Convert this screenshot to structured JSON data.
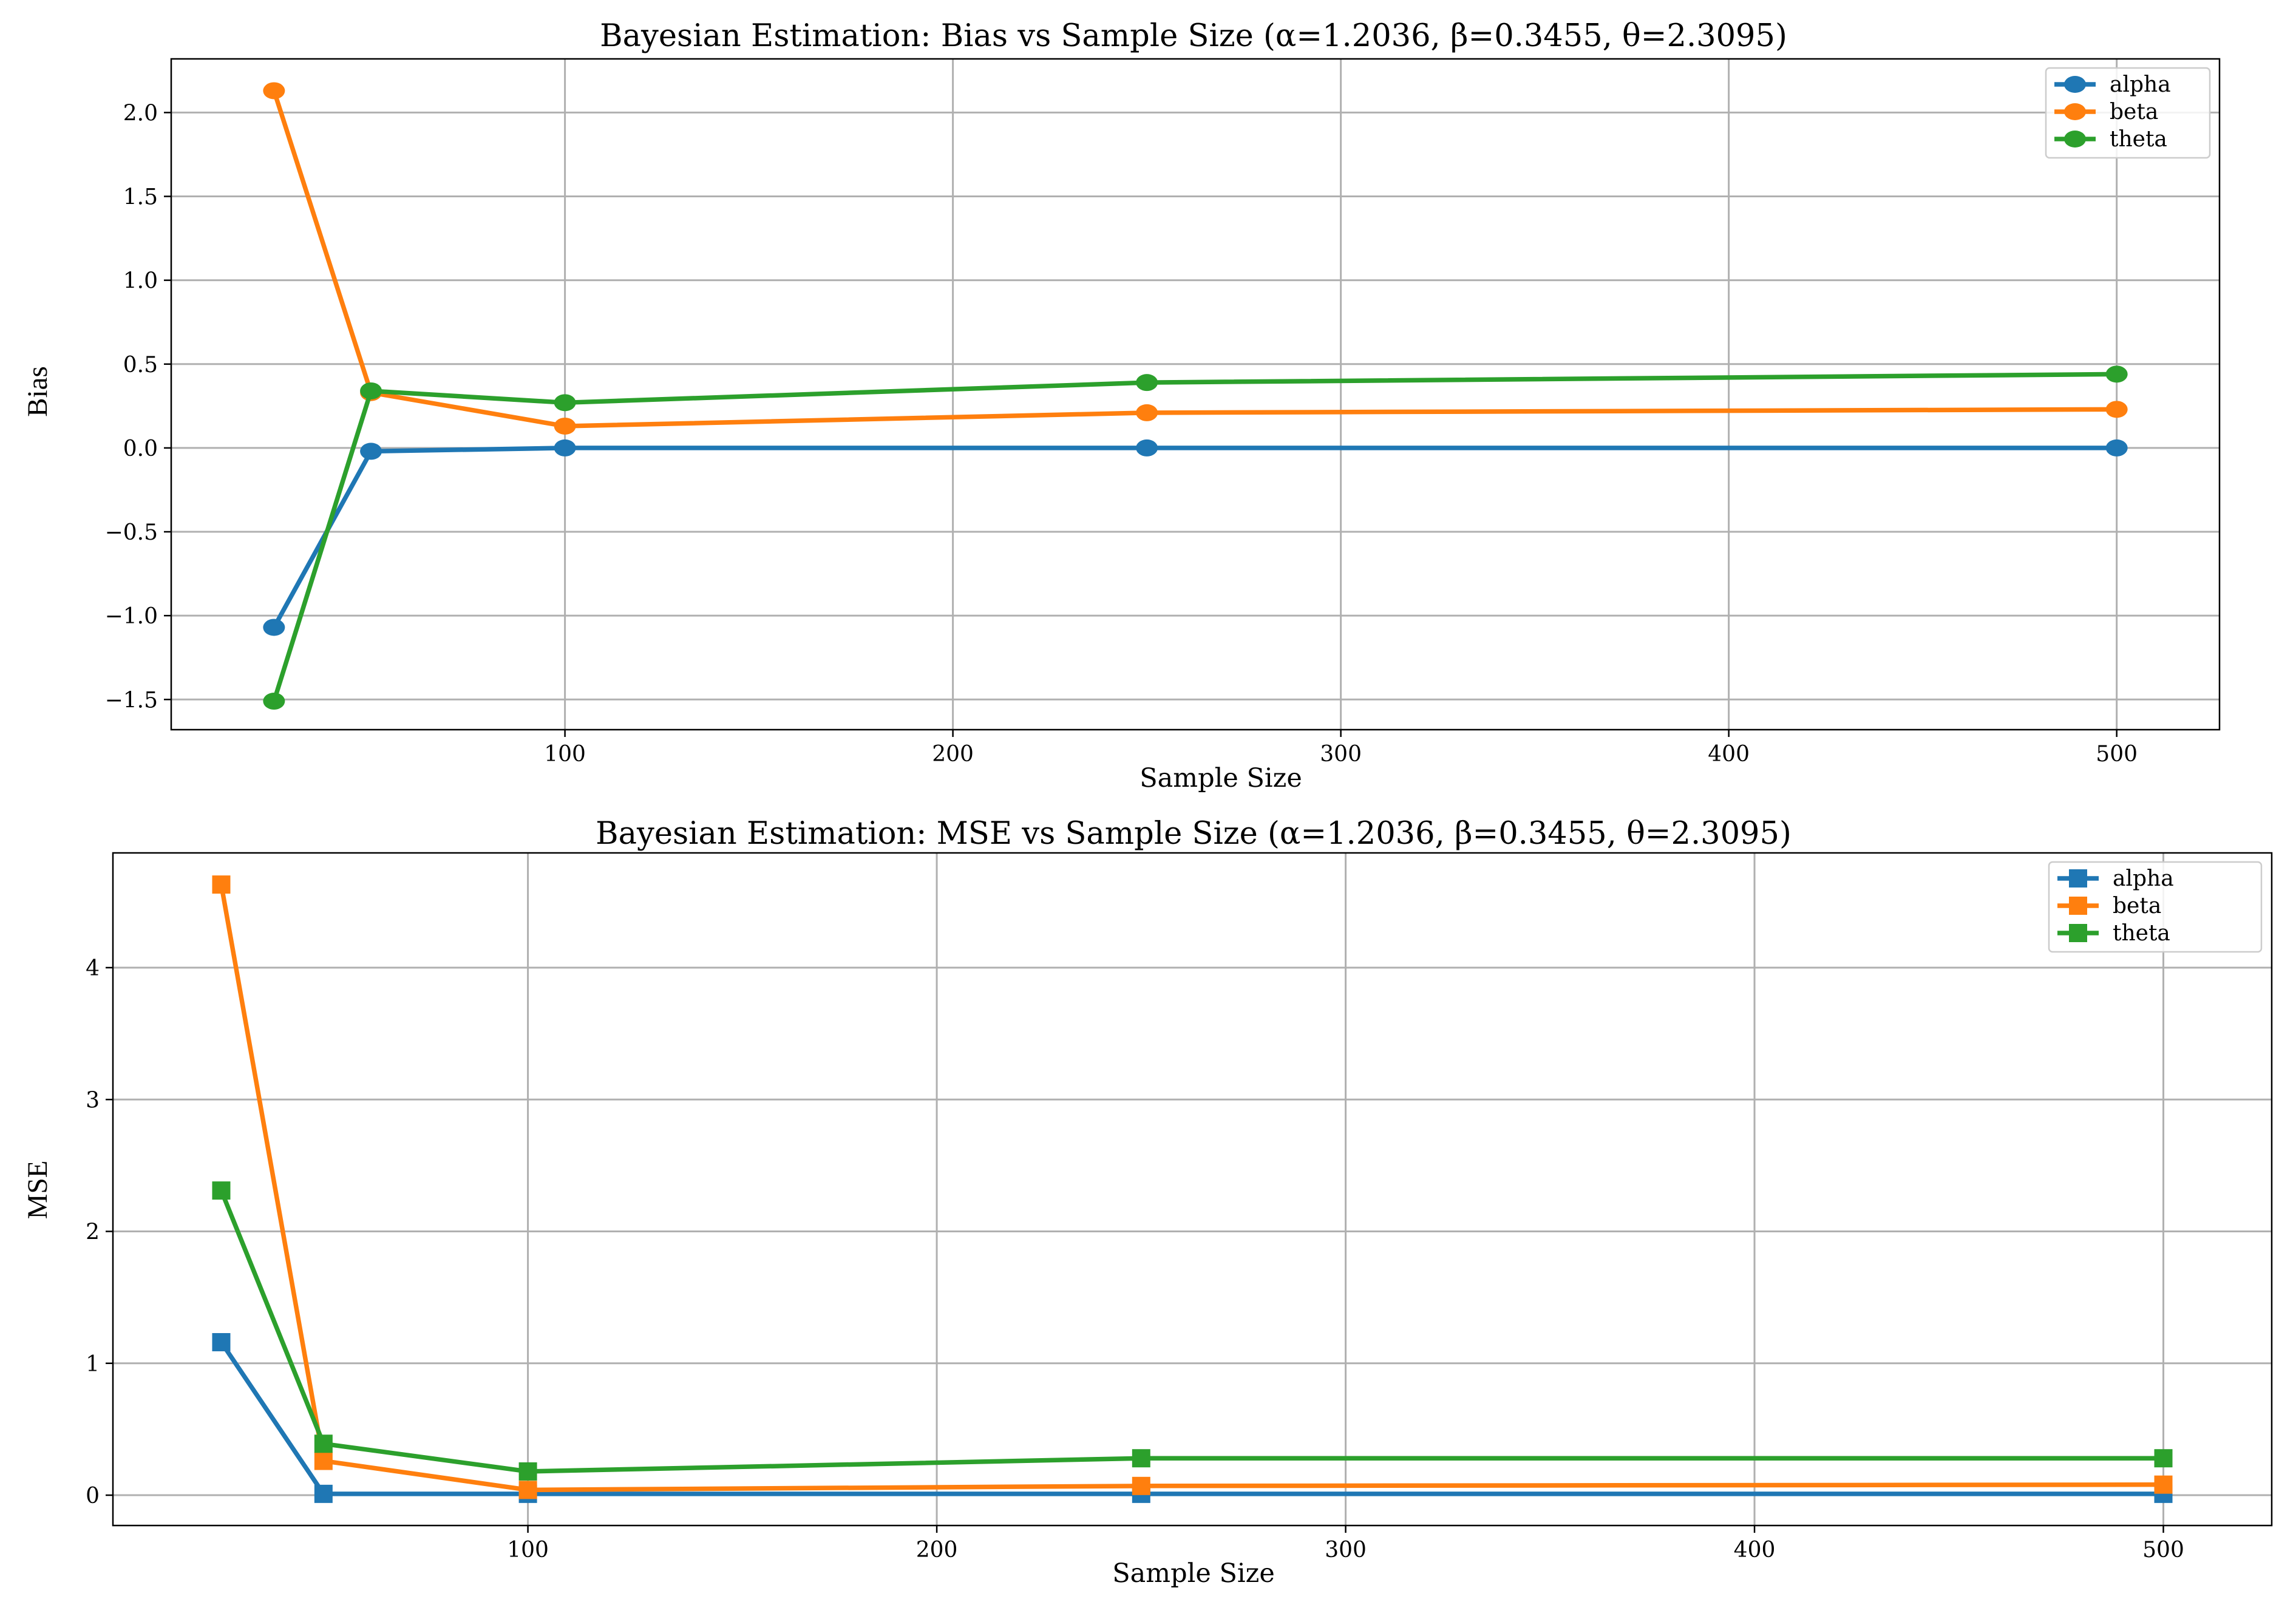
{
  "colors": {
    "alpha": "#1f77b4",
    "beta": "#ff7f0e",
    "theta": "#2ca02c"
  },
  "chart_data": [
    {
      "type": "line",
      "title": "Bayesian Estimation: Bias vs Sample Size (α=1.2036, β=0.3455, θ=2.3095)",
      "xlabel": "Sample Size",
      "ylabel": "Bias",
      "marker": "circle",
      "grid": true,
      "legend_position": "top-right",
      "xlim": [
        -1.5,
        526.5
      ],
      "ylim": [
        -1.68,
        2.32
      ],
      "xticks": [
        100,
        200,
        300,
        400,
        500
      ],
      "xtick_labels": [
        "100",
        "200",
        "300",
        "400",
        "500"
      ],
      "yticks": [
        -1.5,
        -1.0,
        -0.5,
        0.0,
        0.5,
        1.0,
        1.5,
        2.0
      ],
      "ytick_labels": [
        "−1.5",
        "−1.0",
        "−0.5",
        "0.0",
        "0.5",
        "1.0",
        "1.5",
        "2.0"
      ],
      "x": [
        25,
        50,
        100,
        250,
        500
      ],
      "series": [
        {
          "name": "alpha",
          "color_key": "alpha",
          "values": [
            -1.07,
            -0.02,
            0.0,
            0.0,
            0.0
          ]
        },
        {
          "name": "beta",
          "color_key": "beta",
          "values": [
            2.13,
            0.33,
            0.13,
            0.21,
            0.23
          ]
        },
        {
          "name": "theta",
          "color_key": "theta",
          "values": [
            -1.51,
            0.34,
            0.27,
            0.39,
            0.44
          ]
        }
      ]
    },
    {
      "type": "line",
      "title": "Bayesian Estimation: MSE vs Sample Size (α=1.2036, β=0.3455, θ=2.3095)",
      "xlabel": "Sample Size",
      "ylabel": "MSE",
      "marker": "square",
      "grid": true,
      "legend_position": "top-right",
      "xlim": [
        -1.5,
        526.5
      ],
      "ylim": [
        -0.23,
        4.87
      ],
      "xticks": [
        100,
        200,
        300,
        400,
        500
      ],
      "xtick_labels": [
        "100",
        "200",
        "300",
        "400",
        "500"
      ],
      "yticks": [
        0,
        1,
        2,
        3,
        4
      ],
      "ytick_labels": [
        "0",
        "1",
        "2",
        "3",
        "4"
      ],
      "x": [
        25,
        50,
        100,
        250,
        500
      ],
      "series": [
        {
          "name": "alpha",
          "color_key": "alpha",
          "values": [
            1.16,
            0.01,
            0.01,
            0.01,
            0.01
          ]
        },
        {
          "name": "beta",
          "color_key": "beta",
          "values": [
            4.63,
            0.26,
            0.04,
            0.07,
            0.08
          ]
        },
        {
          "name": "theta",
          "color_key": "theta",
          "values": [
            2.31,
            0.39,
            0.18,
            0.28,
            0.28
          ]
        }
      ]
    }
  ]
}
